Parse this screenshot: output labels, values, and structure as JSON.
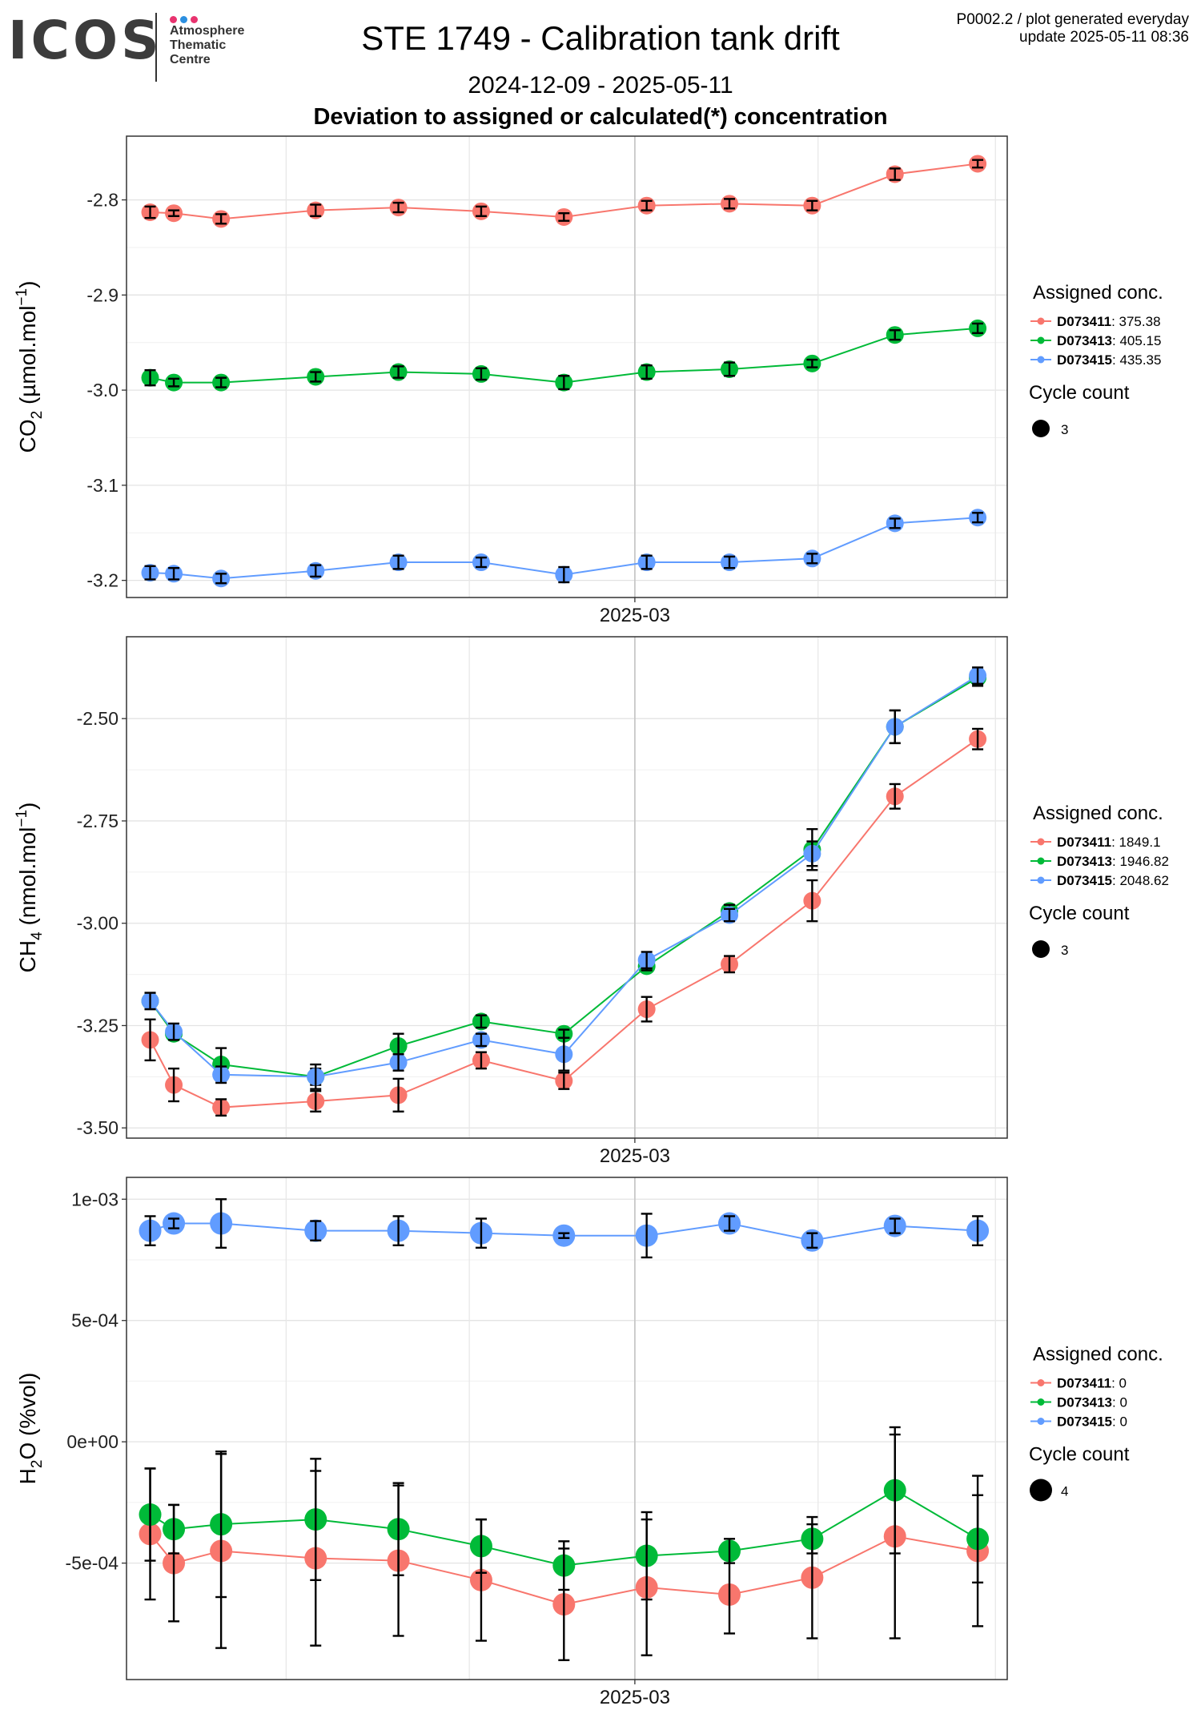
{
  "header": {
    "logo_text": "ICOS",
    "logo_sub": [
      "Atmosphere",
      "Thematic",
      "Centre"
    ],
    "logo_dot_colors": [
      "#e8336f",
      "#2b8fe0",
      "#e8336f"
    ],
    "title": "STE 1749 - Calibration tank drift",
    "date_range": "2024-12-09 - 2025-05-11",
    "subtitle": "Deviation to assigned or calculated(*) concentration",
    "corner_line1": "P0002.2 / plot generated everyday",
    "corner_line2": "update  2025-05-11 08:36"
  },
  "legend_titles": {
    "assigned": "Assigned conc.",
    "cycle": "Cycle count"
  },
  "chart_data": [
    {
      "type": "scatter",
      "ylabel": "CO2 (µmol.mol-1)",
      "ylabel_parts": [
        "CO",
        "2",
        " (µmol.mol",
        "−1",
        ")"
      ],
      "xlabel": "2025-03",
      "x_tick_label": "2025-03",
      "x": [
        "2024-12-09",
        "2024-12-13",
        "2024-12-21",
        "2025-01-06",
        "2025-01-20",
        "2025-02-03",
        "2025-02-17",
        "2025-03-03",
        "2025-03-17",
        "2025-03-31",
        "2025-04-14",
        "2025-04-28"
      ],
      "ylim": [
        -3.218,
        -2.733
      ],
      "yticks": [
        -3.2,
        -3.1,
        -3.0,
        -2.9,
        -2.8
      ],
      "ytick_labels": [
        "-3.2",
        "-3.1",
        "-3.0",
        "-2.9",
        "-2.8"
      ],
      "series": [
        {
          "name": "D073411",
          "assigned": "375.38",
          "color": "#f8766d",
          "values": [
            -2.813,
            -2.814,
            -2.82,
            -2.811,
            -2.808,
            -2.812,
            -2.818,
            -2.806,
            -2.804,
            -2.806,
            -2.773,
            -2.762
          ],
          "err": [
            0.006,
            0.003,
            0.005,
            0.006,
            0.005,
            0.005,
            0.004,
            0.005,
            0.005,
            0.005,
            0.006,
            0.004
          ]
        },
        {
          "name": "D073413",
          "assigned": "405.15",
          "color": "#00ba38",
          "values": [
            -2.987,
            -2.992,
            -2.992,
            -2.986,
            -2.981,
            -2.983,
            -2.992,
            -2.981,
            -2.978,
            -2.972,
            -2.942,
            -2.935
          ],
          "err": [
            0.008,
            0.004,
            0.005,
            0.005,
            0.006,
            0.006,
            0.007,
            0.007,
            0.007,
            0.004,
            0.005,
            0.005
          ]
        },
        {
          "name": "D073415",
          "assigned": "435.35",
          "color": "#619cff",
          "values": [
            -3.192,
            -3.193,
            -3.198,
            -3.19,
            -3.181,
            -3.181,
            -3.194,
            -3.181,
            -3.181,
            -3.177,
            -3.14,
            -3.134
          ],
          "err": [
            0.007,
            0.006,
            0.005,
            0.006,
            0.007,
            0.005,
            0.008,
            0.007,
            0.006,
            0.005,
            0.005,
            0.005
          ]
        }
      ],
      "cycle_count": "3",
      "grid": true,
      "legend": "right"
    },
    {
      "type": "scatter",
      "ylabel": "CH4 (nmol.mol-1)",
      "ylabel_parts": [
        "CH",
        "4",
        " (nmol.mol",
        "−1",
        ")"
      ],
      "xlabel": "2025-03",
      "x_tick_label": "2025-03",
      "x": [
        "2024-12-09",
        "2024-12-13",
        "2024-12-21",
        "2025-01-06",
        "2025-01-20",
        "2025-02-03",
        "2025-02-17",
        "2025-03-03",
        "2025-03-17",
        "2025-03-31",
        "2025-04-14",
        "2025-04-28"
      ],
      "ylim": [
        -3.525,
        -2.3
      ],
      "yticks": [
        -3.5,
        -3.25,
        -3.0,
        -2.75,
        -2.5
      ],
      "ytick_labels": [
        "-3.50",
        "-3.25",
        "-3.00",
        "-2.75",
        "-2.50"
      ],
      "series": [
        {
          "name": "D073411",
          "assigned": "1849.1",
          "color": "#f8766d",
          "values": [
            -3.285,
            -3.395,
            -3.45,
            -3.435,
            -3.42,
            -3.335,
            -3.385,
            -3.21,
            -3.1,
            -2.945,
            -2.69,
            -2.55
          ],
          "err": [
            0.05,
            0.04,
            0.02,
            0.025,
            0.04,
            0.02,
            0.02,
            0.03,
            0.02,
            0.05,
            0.03,
            0.025
          ]
        },
        {
          "name": "D073413",
          "assigned": "1946.82",
          "color": "#00ba38",
          "values": [
            -3.19,
            -3.27,
            -3.345,
            -3.375,
            -3.3,
            -3.24,
            -3.27,
            -3.105,
            -2.97,
            -2.82,
            -2.52,
            -2.4
          ],
          "err": [
            0.02,
            0.015,
            0.04,
            0.02,
            0.03,
            0.015,
            0.01,
            0.01,
            0.015,
            0.05,
            0.04,
            0.02
          ]
        },
        {
          "name": "D073415",
          "assigned": "2048.62",
          "color": "#619cff",
          "values": [
            -3.19,
            -3.265,
            -3.37,
            -3.375,
            -3.34,
            -3.285,
            -3.32,
            -3.09,
            -2.98,
            -2.83,
            -2.52,
            -2.395
          ],
          "err": [
            0.02,
            0.02,
            0.02,
            0.03,
            0.02,
            0.015,
            0.04,
            0.02,
            0.015,
            0.03,
            0.04,
            0.02
          ]
        }
      ],
      "cycle_count": "3",
      "grid": true,
      "legend": "right"
    },
    {
      "type": "scatter",
      "ylabel": "H2O (%vol)",
      "ylabel_parts": [
        "H",
        "2",
        "O (%vol)",
        "",
        ""
      ],
      "xlabel": "2025-03",
      "x_tick_label": "2025-03",
      "x": [
        "2024-12-09",
        "2024-12-13",
        "2024-12-21",
        "2025-01-06",
        "2025-01-20",
        "2025-02-03",
        "2025-02-17",
        "2025-03-03",
        "2025-03-17",
        "2025-03-31",
        "2025-04-14",
        "2025-04-28"
      ],
      "ylim": [
        -0.00098,
        0.00109
      ],
      "yticks": [
        -0.0005,
        0.0,
        0.0005,
        0.001
      ],
      "ytick_labels": [
        "-5e-04",
        "0e+00",
        "5e-04",
        "1e-03"
      ],
      "series": [
        {
          "name": "D073411",
          "assigned": "0",
          "color": "#f8766d",
          "values": [
            -0.00038,
            -0.0005,
            -0.00045,
            -0.00048,
            -0.00049,
            -0.00057,
            -0.00067,
            -0.0006,
            -0.00063,
            -0.00056,
            -0.00039,
            -0.00045
          ],
          "err": [
            0.00027,
            0.00024,
            0.0004,
            0.00036,
            0.00031,
            0.00025,
            0.00023,
            0.00028,
            0.00016,
            0.00025,
            0.00042,
            0.00031
          ]
        },
        {
          "name": "D073413",
          "assigned": "0",
          "color": "#00ba38",
          "values": [
            -0.0003,
            -0.00036,
            -0.00034,
            -0.00032,
            -0.00036,
            -0.00043,
            -0.00051,
            -0.00047,
            -0.00045,
            -0.0004,
            -0.0002,
            -0.0004
          ],
          "err": [
            0.00019,
            0.0001,
            0.0003,
            0.00025,
            0.00019,
            0.00011,
            0.0001,
            0.00018,
            5e-05,
            6e-05,
            0.00026,
            0.00018
          ]
        },
        {
          "name": "D073415",
          "assigned": "0",
          "color": "#619cff",
          "values": [
            0.00087,
            0.0009,
            0.0009,
            0.00087,
            0.00087,
            0.00086,
            0.00085,
            0.00085,
            0.0009,
            0.00083,
            0.00089,
            0.00087
          ],
          "err": [
            6e-05,
            2e-05,
            0.0001,
            4e-05,
            6e-05,
            6e-05,
            1e-05,
            9e-05,
            3e-05,
            3e-05,
            3e-05,
            6e-05
          ]
        }
      ],
      "cycle_count": "4",
      "grid": true,
      "legend": "right"
    }
  ]
}
